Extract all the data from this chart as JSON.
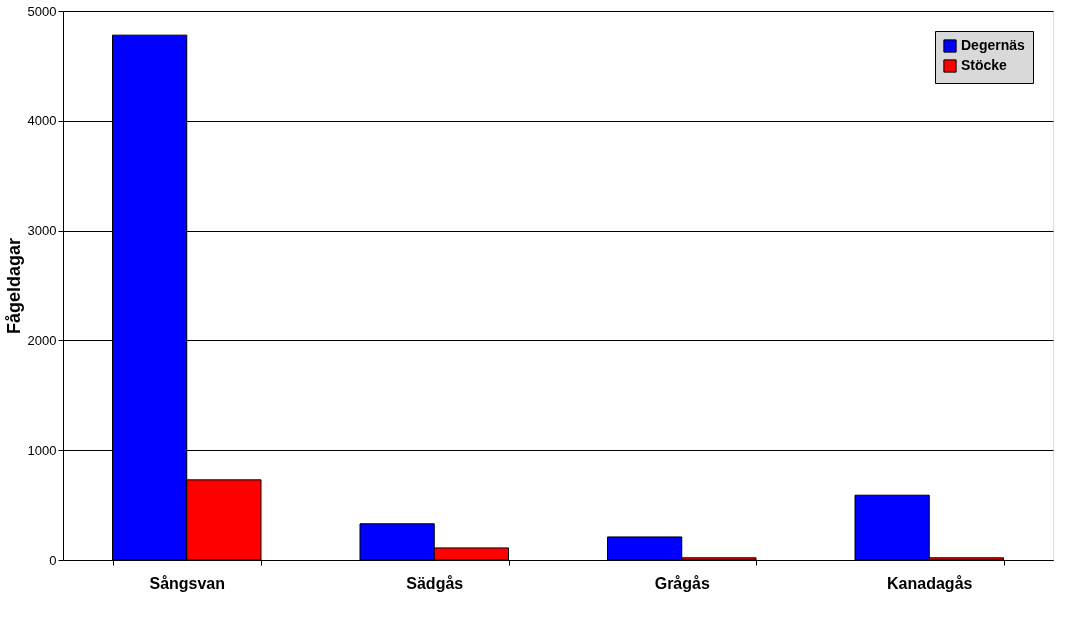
{
  "chart_data": {
    "type": "bar",
    "ylabel": "Fågeldagar",
    "categories": [
      "Sångsvan",
      "Sädgås",
      "Grågås",
      "Kanadagås"
    ],
    "series": [
      {
        "name": "Degernäs",
        "color": "#0000ff",
        "values": [
          4780,
          330,
          210,
          590
        ]
      },
      {
        "name": "Stöcke",
        "color": "#ff0000",
        "values": [
          730,
          110,
          20,
          20
        ]
      }
    ],
    "ylim": [
      0,
      5000
    ],
    "yticks": [
      0,
      1000,
      2000,
      3000,
      4000,
      5000
    ],
    "grid": "y",
    "legend": "top right"
  }
}
